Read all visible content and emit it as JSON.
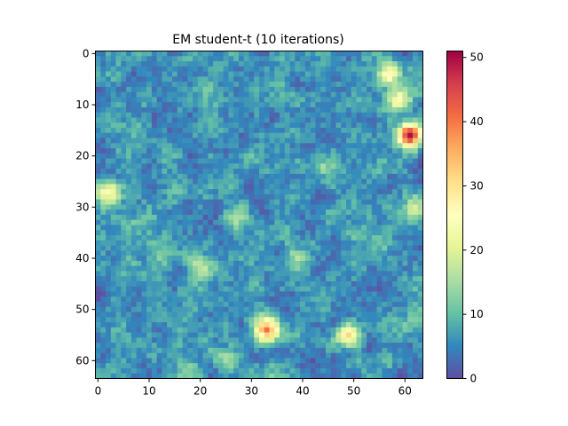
{
  "chart_data": {
    "type": "heatmap",
    "title": "EM student-t (10 iterations)",
    "xlabel": "",
    "ylabel": "",
    "grid_size": [
      64,
      64
    ],
    "x_ticks": [
      0,
      10,
      20,
      30,
      40,
      50,
      60
    ],
    "y_ticks": [
      0,
      10,
      20,
      30,
      40,
      50,
      60
    ],
    "colorbar": {
      "colormap": "Spectral_r",
      "range": [
        0,
        51
      ],
      "ticks": [
        0,
        10,
        20,
        30,
        40,
        50
      ]
    },
    "background_mean": 6,
    "hotspots": [
      {
        "x": 57,
        "y": 4,
        "value": 28
      },
      {
        "x": 59,
        "y": 9,
        "value": 26
      },
      {
        "x": 61,
        "y": 16,
        "value": 51
      },
      {
        "x": 33,
        "y": 54,
        "value": 38
      },
      {
        "x": 49,
        "y": 55,
        "value": 30
      },
      {
        "x": 2,
        "y": 27,
        "value": 24
      },
      {
        "x": 27,
        "y": 32,
        "value": 19
      },
      {
        "x": 39,
        "y": 40,
        "value": 14
      },
      {
        "x": 20,
        "y": 42,
        "value": 15
      },
      {
        "x": 44,
        "y": 22,
        "value": 14
      },
      {
        "x": 25,
        "y": 60,
        "value": 18
      },
      {
        "x": 62,
        "y": 30,
        "value": 18
      }
    ]
  }
}
